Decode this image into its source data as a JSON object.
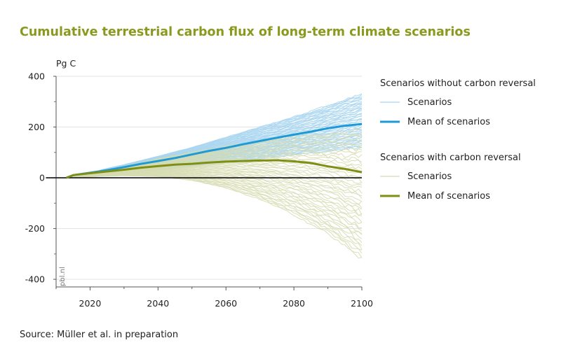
{
  "chart_data": {
    "type": "line",
    "title": "Cumulative terrestrial carbon flux of long-term climate scenarios",
    "ylabel": "Pg C",
    "xlabel": "",
    "x_ticks": [
      2020,
      2040,
      2060,
      2080,
      2100
    ],
    "y_ticks": [
      400,
      200,
      0,
      -200,
      -400
    ],
    "y_tick_labels": [
      "400",
      "200",
      "0",
      "-200",
      "-400"
    ],
    "xlim": [
      2010,
      2100
    ],
    "ylim": [
      -430,
      400
    ],
    "grid": true,
    "zero_line": true,
    "watermark": "pbl.nl",
    "source": "Source: Müller et al. in preparation",
    "legend": {
      "groups": [
        {
          "heading": "Scenarios without carbon reversal",
          "entries": [
            {
              "label": "Scenarios",
              "color": "#a9d5f0",
              "style": "thin"
            },
            {
              "label": "Mean of scenarios",
              "color": "#1e9ad6",
              "style": "thick"
            }
          ]
        },
        {
          "heading": "Scenarios with carbon reversal",
          "entries": [
            {
              "label": "Scenarios",
              "color": "#d6dcb0",
              "style": "thin"
            },
            {
              "label": "Mean of scenarios",
              "color": "#7f8f14",
              "style": "thick"
            }
          ]
        }
      ]
    },
    "series": [
      {
        "name": "Scenarios without carbon reversal (ensemble)",
        "kind": "ensemble",
        "color": "#a9d5f0",
        "count": 50,
        "x": [
          2010,
          2020,
          2030,
          2040,
          2050,
          2060,
          2070,
          2080,
          2090,
          2100
        ],
        "envelope_min": [
          0,
          8,
          18,
          30,
          45,
          60,
          75,
          90,
          105,
          120
        ],
        "envelope_max": [
          0,
          22,
          52,
          85,
          120,
          160,
          200,
          240,
          285,
          330
        ]
      },
      {
        "name": "Mean of scenarios without carbon reversal",
        "kind": "mean",
        "color": "#1e9ad6",
        "x": [
          2010,
          2015,
          2020,
          2025,
          2030,
          2035,
          2040,
          2045,
          2050,
          2055,
          2060,
          2065,
          2070,
          2075,
          2080,
          2085,
          2090,
          2095,
          2100
        ],
        "values": [
          0,
          10,
          20,
          30,
          42,
          55,
          66,
          78,
          92,
          106,
          118,
          132,
          145,
          158,
          170,
          182,
          195,
          205,
          212
        ]
      },
      {
        "name": "Scenarios with carbon reversal (ensemble)",
        "kind": "ensemble",
        "color": "#d6dcb0",
        "count": 45,
        "x": [
          2010,
          2020,
          2030,
          2040,
          2050,
          2060,
          2070,
          2080,
          2090,
          2100
        ],
        "envelope_min": [
          0,
          5,
          8,
          5,
          -10,
          -40,
          -85,
          -145,
          -220,
          -320
        ],
        "envelope_max": [
          0,
          20,
          45,
          75,
          100,
          125,
          145,
          160,
          175,
          185
        ]
      },
      {
        "name": "Mean of scenarios with carbon reversal",
        "kind": "mean",
        "color": "#7f8f14",
        "x": [
          2010,
          2015,
          2020,
          2025,
          2030,
          2035,
          2040,
          2045,
          2050,
          2055,
          2060,
          2065,
          2070,
          2075,
          2080,
          2085,
          2090,
          2095,
          2100
        ],
        "values": [
          0,
          10,
          18,
          25,
          32,
          40,
          46,
          52,
          55,
          60,
          64,
          66,
          68,
          69,
          65,
          58,
          45,
          35,
          22
        ]
      }
    ]
  }
}
